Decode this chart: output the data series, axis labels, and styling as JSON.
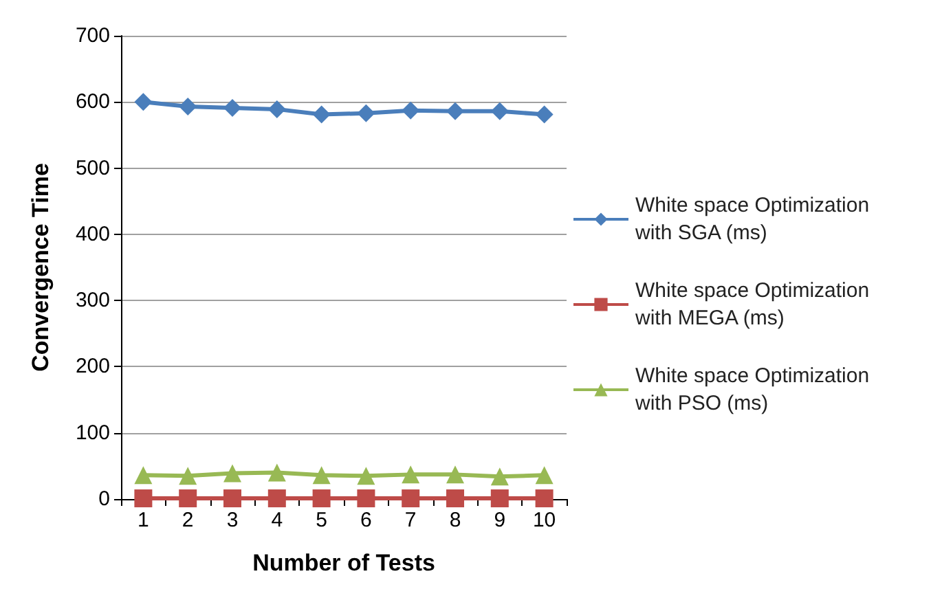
{
  "chart_data": {
    "type": "line",
    "xlabel": "Number of Tests",
    "ylabel": "Convergence Time",
    "categories": [
      "1",
      "2",
      "3",
      "4",
      "5",
      "6",
      "7",
      "8",
      "9",
      "10"
    ],
    "series": [
      {
        "name": "White space Optimization with SGA (ms)",
        "color": "#4a7ebb",
        "marker": "diamond",
        "values": [
          600,
          593,
          591,
          589,
          581,
          583,
          587,
          586,
          586,
          581
        ]
      },
      {
        "name": "White space Optimization with MEGA (ms)",
        "color": "#be4b48",
        "marker": "square",
        "values": [
          1,
          1,
          1,
          1,
          1,
          1,
          1,
          1,
          1,
          1
        ]
      },
      {
        "name": "White space Optimization with PSO (ms)",
        "color": "#98b954",
        "marker": "triangle",
        "values": [
          36,
          35,
          39,
          40,
          36,
          35,
          37,
          37,
          34,
          36
        ]
      }
    ],
    "ylim": [
      0,
      700
    ],
    "yticks": [
      0,
      100,
      200,
      300,
      400,
      500,
      600,
      700
    ],
    "grid": "y",
    "legend": "right"
  }
}
